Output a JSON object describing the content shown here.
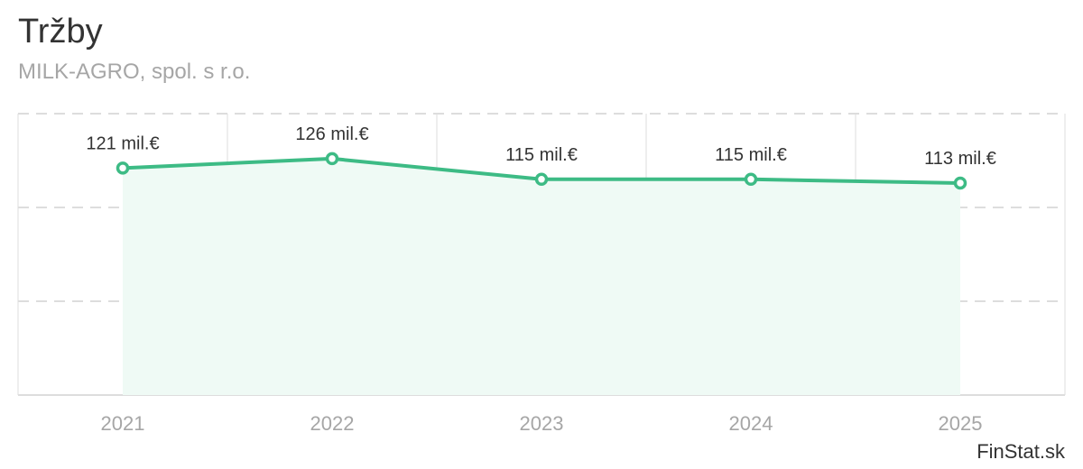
{
  "header": {
    "title": "Tržby",
    "subtitle": "MILK-AGRO, spol. s r.o."
  },
  "credit": "FinStat.sk",
  "colors": {
    "line": "#3dbb85",
    "area": "#effaf5",
    "grid": "#dddddd",
    "axis_text": "#a6a6a6",
    "label_text": "#333333"
  },
  "chart_data": {
    "type": "area",
    "title": "Tržby",
    "subtitle": "MILK-AGRO, spol. s r.o.",
    "xlabel": "",
    "ylabel": "",
    "unit": "mil.€",
    "categories": [
      "2021",
      "2022",
      "2023",
      "2024",
      "2025"
    ],
    "series": [
      {
        "name": "Tržby",
        "values": [
          121,
          126,
          115,
          115,
          113
        ],
        "labels": [
          "121 mil.€",
          "126 mil.€",
          "115 mil.€",
          "115 mil.€",
          "113 mil.€"
        ]
      }
    ],
    "ylim": [
      0,
      150
    ],
    "grid": true
  }
}
